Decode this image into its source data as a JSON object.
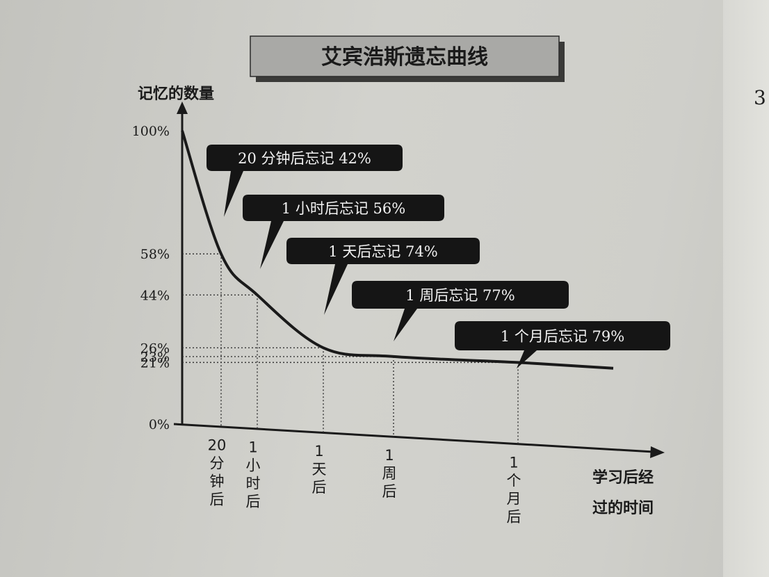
{
  "page": {
    "page_number_fragment": "3"
  },
  "chart_data": {
    "type": "line",
    "title": "艾宾浩斯遗忘曲线",
    "ylabel": "记忆的数量",
    "xlabel_lines": [
      "学习后经",
      "过的时间"
    ],
    "ylim": [
      0,
      100
    ],
    "y_ticks": [
      {
        "value": 0,
        "label": "0%"
      },
      {
        "value": 21,
        "label": "21%"
      },
      {
        "value": 23,
        "label": "23%"
      },
      {
        "value": 26,
        "label": "26%"
      },
      {
        "value": 44,
        "label": "44%"
      },
      {
        "value": 58,
        "label": "58%"
      },
      {
        "value": 100,
        "label": "100%"
      }
    ],
    "points": [
      {
        "label_lines": [
          "20",
          "分",
          "钟",
          "后"
        ],
        "value": 58,
        "callout": "20 分钟后忘记 42%"
      },
      {
        "label_lines": [
          "1",
          "小",
          "时",
          "后"
        ],
        "value": 44,
        "callout": "1 小时后忘记 56%"
      },
      {
        "label_lines": [
          "1",
          "天",
          "后"
        ],
        "value": 26,
        "callout": "1 天后忘记 74%"
      },
      {
        "label_lines": [
          "1",
          "周",
          "后"
        ],
        "value": 23,
        "callout": "1 周后忘记 77%"
      },
      {
        "label_lines": [
          "1",
          "个",
          "月",
          "后"
        ],
        "value": 21,
        "callout": "1 个月后忘记 79%"
      }
    ],
    "series": [
      {
        "values": [
          100,
          58,
          44,
          26,
          23,
          21,
          19
        ]
      }
    ],
    "colors": {
      "curve": "#1a1a1a",
      "callout_bg": "#151515",
      "callout_text": "#f2f2f2",
      "title_bg": "#a9a9a6"
    }
  }
}
